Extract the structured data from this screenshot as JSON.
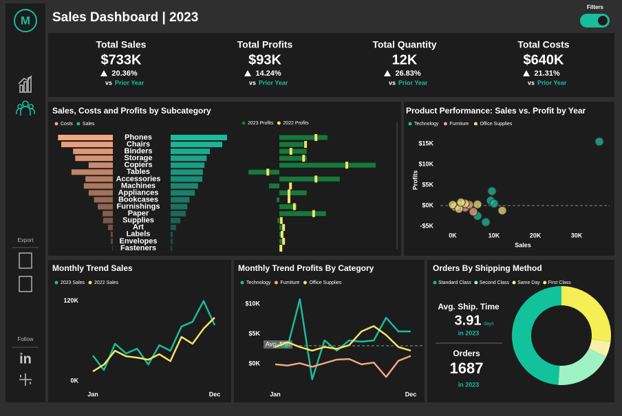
{
  "sidebar": {
    "logo": "M",
    "export": "Export",
    "follow": "Follow",
    "linkedin": "in"
  },
  "header": {
    "title": "Sales Dashboard | 2023",
    "filters": "Filters"
  },
  "kpis": [
    {
      "label": "Total Sales",
      "value": "$733K",
      "change": "20.36%",
      "vs": "vs",
      "prior": "Prior Year"
    },
    {
      "label": "Total Profits",
      "value": "$93K",
      "change": "14.24%",
      "vs": "vs",
      "prior": "Prior Year"
    },
    {
      "label": "Total Quantity",
      "value": "12K",
      "change": "26.83%",
      "vs": "vs",
      "prior": "Prior Year"
    },
    {
      "label": "Total Costs",
      "value": "$640K",
      "change": "21.31%",
      "vs": "vs",
      "prior": "Prior Year"
    }
  ],
  "shipping_stats": {
    "avg_label": "Avg. Ship. Time",
    "avg_value": "3.91",
    "avg_unit": "days",
    "avg_year": "in 2023",
    "orders_label": "Orders",
    "orders_value": "1687",
    "orders_year": "in 2023"
  },
  "chart_data": [
    {
      "type": "bar",
      "title": "Sales, Costs and Profits by Subcategory",
      "categories": [
        "Phones",
        "Chairs",
        "Binders",
        "Storage",
        "Copiers",
        "Tables",
        "Accessories",
        "Machines",
        "Appliances",
        "Bookcases",
        "Furnishings",
        "Paper",
        "Supplies",
        "Art",
        "Labels",
        "Envelopes",
        "Fasteners"
      ],
      "series": [
        {
          "name": "Costs",
          "color": "#f4a582",
          "values": [
            102000,
            96000,
            74000,
            70000,
            45000,
            77000,
            51000,
            54000,
            45000,
            35000,
            28000,
            19000,
            18000,
            9000,
            4000,
            4000,
            1000
          ]
        },
        {
          "name": "Sales",
          "color": "#1abc9c",
          "values": [
            105000,
            96000,
            73000,
            67000,
            63000,
            60000,
            59000,
            51000,
            45000,
            35000,
            31000,
            28000,
            18000,
            10000,
            4000,
            4000,
            3000
          ]
        },
        {
          "name": "2023 Profits",
          "color": "#16783a",
          "values": [
            12500,
            6300,
            7100,
            7100,
            25000,
            -8000,
            15700,
            -2700,
            7100,
            -700,
            4500,
            12100,
            -500,
            1400,
            1100,
            1300,
            400
          ]
        },
        {
          "name": "2022 Profits",
          "color": "#f2e36a",
          "values": [
            9500,
            6800,
            3000,
            6300,
            17500,
            -3000,
            9500,
            2900,
            2500,
            2500,
            3900,
            8900,
            500,
            1100,
            700,
            1100,
            400
          ]
        }
      ]
    },
    {
      "type": "scatter",
      "title": "Product Performance: Sales vs. Profit by Year",
      "x_label": "Sales",
      "y_label": "Profits",
      "xlim": [
        -3000,
        37000
      ],
      "xticks": [
        {
          "value": 0,
          "label": "0K"
        },
        {
          "value": 10000,
          "label": "10K"
        },
        {
          "value": 20000,
          "label": "20K"
        },
        {
          "value": 30000,
          "label": "30K"
        }
      ],
      "ylim": [
        -8000,
        17000
      ],
      "yticks": [
        {
          "value": 15000,
          "label": "$15K"
        },
        {
          "value": 10000,
          "label": "$10K"
        },
        {
          "value": 5000,
          "label": "$5K"
        },
        {
          "value": 0,
          "label": "$0K"
        },
        {
          "value": -5000,
          "label": "-$5K"
        }
      ],
      "series": [
        {
          "name": "Technology",
          "color": "#1abc9c",
          "x": [
            35500,
            9500,
            9200,
            6000,
            8000,
            10000
          ],
          "y": [
            15500,
            3500,
            1200,
            -2500,
            -4000,
            500
          ]
        },
        {
          "name": "Furniture",
          "color": "#f4a582",
          "x": [
            1000,
            2000,
            3000,
            500,
            4000,
            5000
          ],
          "y": [
            0,
            300,
            -500,
            -300,
            200,
            -1500
          ]
        },
        {
          "name": "Office Supplies",
          "color": "#e8dc7a",
          "x": [
            0,
            1500,
            3000,
            12000,
            6000,
            2000
          ],
          "y": [
            200,
            -800,
            500,
            -1200,
            300,
            800
          ]
        }
      ]
    },
    {
      "type": "line",
      "title": "Monthly Trend Sales",
      "categories": [
        "Jan",
        null,
        null,
        null,
        null,
        null,
        null,
        null,
        null,
        null,
        null,
        "Dec"
      ],
      "ylim": [
        -10000,
        130000
      ],
      "yticks": [
        {
          "value": 120000,
          "label": "120K"
        },
        {
          "value": 0,
          "label": "0K"
        }
      ],
      "series": [
        {
          "name": "2023 Sales",
          "color": "#1abc9c",
          "values": [
            38300,
            16500,
            55900,
            41400,
            48600,
            24800,
            53800,
            45500,
            81700,
            88900,
            120000,
            83800
          ]
        },
        {
          "name": "2022 Sales",
          "color": "#f5e663",
          "values": [
            14500,
            24800,
            45500,
            37200,
            35200,
            32100,
            40300,
            30000,
            66200,
            55900,
            78600,
            95200
          ]
        }
      ]
    },
    {
      "type": "line",
      "title": "Monthly Trend Profits By Category",
      "categories": [
        "Jan",
        null,
        null,
        null,
        null,
        null,
        null,
        null,
        null,
        null,
        null,
        "Dec"
      ],
      "ylim": [
        -3500,
        12000
      ],
      "yticks": [
        {
          "value": 10000,
          "label": "$10K"
        },
        {
          "value": 5000,
          "label": "$5K"
        },
        {
          "value": 0,
          "label": "$0K"
        }
      ],
      "average": {
        "value": 3000,
        "label": "Avg. $3K"
      },
      "series": [
        {
          "name": "Technology",
          "color": "#1abc9c",
          "values": [
            3300,
            2800,
            10800,
            -2600,
            3900,
            2200,
            3900,
            3700,
            3900,
            7700,
            5400,
            5400
          ]
        },
        {
          "name": "Furniture",
          "color": "#f4a582",
          "values": [
            -100,
            -300,
            100,
            -500,
            100,
            700,
            800,
            -100,
            200,
            -2200,
            500,
            1300
          ]
        },
        {
          "name": "Office Supplies",
          "color": "#f5e663",
          "values": [
            2800,
            3600,
            2800,
            2200,
            2800,
            2500,
            3100,
            5400,
            6300,
            4800,
            2800,
            2200
          ]
        }
      ]
    },
    {
      "type": "pie",
      "title": "Orders By Shipping Method",
      "categories": [
        "Standard Class",
        "Second Class",
        "Same Day",
        "First Class"
      ],
      "values": [
        49,
        19,
        5,
        27
      ],
      "colors": [
        "#11c29a",
        "#9ef2c4",
        "#f6f1a6",
        "#f5ee55"
      ]
    }
  ]
}
